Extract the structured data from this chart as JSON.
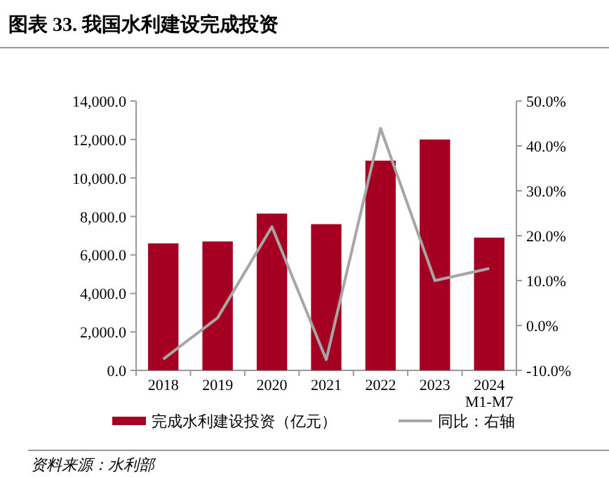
{
  "chart_data": {
    "type": "bar",
    "title": "图表 33. 我国水利建设完成投资",
    "categories": [
      "2018",
      "2019",
      "2020",
      "2021",
      "2022",
      "2023",
      "2024\nM1-M7"
    ],
    "series": [
      {
        "name": "完成水利建设投资（亿元）",
        "color": "#a50021",
        "values": [
          6600,
          6700,
          8150,
          7600,
          10900,
          12000,
          6900
        ]
      },
      {
        "name": "同比：右轴",
        "type": "line",
        "axis": "y2",
        "color": "#a6a6a6",
        "values": [
          -7.5,
          1.7,
          22.0,
          -7.6,
          43.9,
          10.0,
          12.7
        ]
      }
    ],
    "ylim": [
      0,
      14000
    ],
    "yticks": [
      {
        "value": 0,
        "label": "0.0"
      },
      {
        "value": 2000,
        "label": "2,000.0"
      },
      {
        "value": 4000,
        "label": "4,000.0"
      },
      {
        "value": 6000,
        "label": "6,000.0"
      },
      {
        "value": 8000,
        "label": "8,000.0"
      },
      {
        "value": 10000,
        "label": "10,000.0"
      },
      {
        "value": 12000,
        "label": "12,000.0"
      },
      {
        "value": 14000,
        "label": "14,000.0"
      }
    ],
    "y2lim": [
      -10,
      50
    ],
    "y2ticks": [
      {
        "value": -10,
        "label": "-10.0%"
      },
      {
        "value": 0,
        "label": "0.0%"
      },
      {
        "value": 10,
        "label": "10.0%"
      },
      {
        "value": 20,
        "label": "20.0%"
      },
      {
        "value": 30,
        "label": "30.0%"
      },
      {
        "value": 40,
        "label": "40.0%"
      },
      {
        "value": 50,
        "label": "50.0%"
      }
    ],
    "legend": "bottom",
    "annotations": [
      "资料来源：水利部"
    ]
  }
}
